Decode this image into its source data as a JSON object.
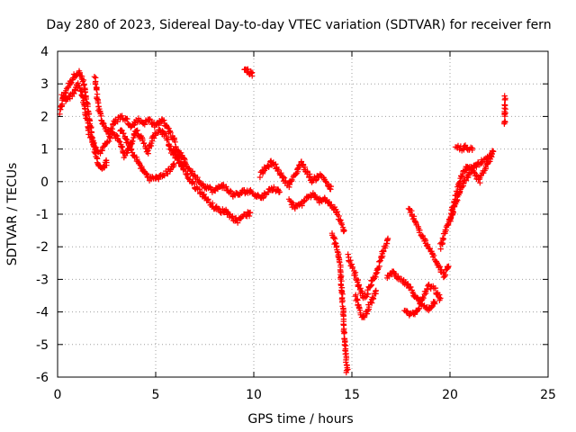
{
  "chart_data": {
    "type": "scatter",
    "title": "Day 280 of 2023, Sidereal Day-to-day VTEC variation (SDTVAR) for receiver fern",
    "xlabel": "GPS time / hours",
    "ylabel": "SDTVAR / TECUs",
    "xlim": [
      0,
      25
    ],
    "ylim": [
      -6,
      4
    ],
    "xticks": [
      0,
      5,
      10,
      15,
      20,
      25
    ],
    "yticks": [
      -6,
      -5,
      -4,
      -3,
      -2,
      -1,
      0,
      1,
      2,
      3,
      4
    ],
    "grid": true,
    "marker": "+",
    "color": "#ff0000",
    "series": [
      {
        "name": "SDTVAR",
        "note": "approximate trace estimates read from the plotted cloud; rendered as dense + markers",
        "traces": [
          [
            [
              0.1,
              2.1
            ],
            [
              0.3,
              2.6
            ],
            [
              0.5,
              2.9
            ],
            [
              0.7,
              3.1
            ],
            [
              0.9,
              3.3
            ],
            [
              1.1,
              3.35
            ],
            [
              1.3,
              3.1
            ],
            [
              1.5,
              2.4
            ],
            [
              1.7,
              1.6
            ],
            [
              1.9,
              0.9
            ],
            [
              2.1,
              0.5
            ],
            [
              2.3,
              0.4
            ],
            [
              2.5,
              0.6
            ]
          ],
          [
            [
              0.2,
              2.6
            ],
            [
              0.5,
              2.5
            ],
            [
              0.8,
              2.7
            ],
            [
              1.0,
              3.0
            ],
            [
              1.2,
              2.8
            ],
            [
              1.4,
              2.2
            ],
            [
              1.6,
              1.5
            ],
            [
              1.8,
              1.2
            ],
            [
              2.0,
              1.0
            ],
            [
              2.2,
              0.9
            ],
            [
              2.5,
              1.2
            ],
            [
              2.8,
              1.5
            ],
            [
              3.1,
              1.3
            ],
            [
              3.4,
              0.8
            ],
            [
              3.7,
              1.1
            ],
            [
              4.0,
              1.6
            ],
            [
              4.3,
              1.3
            ],
            [
              4.6,
              0.9
            ],
            [
              4.9,
              1.4
            ],
            [
              5.2,
              1.6
            ],
            [
              5.5,
              1.4
            ],
            [
              5.8,
              0.9
            ],
            [
              6.1,
              0.7
            ],
            [
              6.4,
              0.5
            ]
          ],
          [
            [
              1.9,
              3.2
            ],
            [
              2.0,
              2.7
            ],
            [
              2.1,
              2.2
            ],
            [
              2.3,
              1.8
            ],
            [
              2.6,
              1.5
            ],
            [
              2.9,
              1.8
            ],
            [
              3.2,
              2.0
            ],
            [
              3.5,
              1.9
            ],
            [
              3.8,
              1.7
            ],
            [
              4.1,
              1.9
            ],
            [
              4.4,
              1.8
            ],
            [
              4.7,
              1.9
            ],
            [
              5.0,
              1.7
            ],
            [
              5.3,
              1.9
            ],
            [
              5.6,
              1.7
            ],
            [
              5.9,
              1.3
            ],
            [
              6.2,
              0.8
            ]
          ],
          [
            [
              3.2,
              1.6
            ],
            [
              3.5,
              1.3
            ],
            [
              3.8,
              0.9
            ],
            [
              4.1,
              0.6
            ],
            [
              4.4,
              0.3
            ],
            [
              4.7,
              0.1
            ],
            [
              5.0,
              0.1
            ],
            [
              5.3,
              0.15
            ],
            [
              5.6,
              0.3
            ],
            [
              5.9,
              0.5
            ]
          ],
          [
            [
              5.9,
              1.0
            ],
            [
              6.2,
              0.6
            ],
            [
              6.5,
              0.3
            ],
            [
              6.8,
              0.0
            ],
            [
              7.1,
              -0.2
            ],
            [
              7.4,
              -0.4
            ],
            [
              7.7,
              -0.6
            ],
            [
              8.0,
              -0.8
            ],
            [
              8.3,
              -0.9
            ],
            [
              8.6,
              -0.9
            ],
            [
              8.9,
              -1.1
            ],
            [
              9.2,
              -1.2
            ],
            [
              9.5,
              -1.0
            ],
            [
              9.8,
              -1.0
            ]
          ],
          [
            [
              6.2,
              0.9
            ],
            [
              6.5,
              0.6
            ],
            [
              6.8,
              0.3
            ],
            [
              7.1,
              0.1
            ],
            [
              7.4,
              -0.1
            ],
            [
              7.7,
              -0.2
            ],
            [
              8.0,
              -0.3
            ],
            [
              8.3,
              -0.1
            ],
            [
              8.6,
              -0.2
            ],
            [
              8.9,
              -0.4
            ],
            [
              9.2,
              -0.4
            ],
            [
              9.5,
              -0.3
            ],
            [
              9.8,
              -0.3
            ],
            [
              10.1,
              -0.4
            ],
            [
              10.4,
              -0.5
            ],
            [
              10.7,
              -0.3
            ],
            [
              11.0,
              -0.2
            ],
            [
              11.3,
              -0.3
            ]
          ],
          [
            [
              9.5,
              3.5
            ],
            [
              9.7,
              3.4
            ],
            [
              9.9,
              3.3
            ]
          ],
          [
            [
              10.3,
              0.2
            ],
            [
              10.6,
              0.4
            ],
            [
              10.9,
              0.6
            ],
            [
              11.2,
              0.4
            ],
            [
              11.5,
              0.1
            ],
            [
              11.8,
              -0.1
            ],
            [
              12.1,
              0.2
            ],
            [
              12.4,
              0.6
            ],
            [
              12.7,
              0.3
            ],
            [
              13.0,
              0.0
            ],
            [
              13.3,
              0.2
            ],
            [
              13.6,
              0.1
            ],
            [
              13.9,
              -0.2
            ]
          ],
          [
            [
              11.8,
              -0.6
            ],
            [
              12.1,
              -0.8
            ],
            [
              12.4,
              -0.7
            ],
            [
              12.7,
              -0.5
            ],
            [
              13.0,
              -0.4
            ],
            [
              13.3,
              -0.6
            ],
            [
              13.6,
              -0.5
            ],
            [
              13.9,
              -0.7
            ],
            [
              14.2,
              -0.9
            ],
            [
              14.4,
              -1.2
            ],
            [
              14.6,
              -1.5
            ]
          ],
          [
            [
              14.0,
              -1.6
            ],
            [
              14.2,
              -2.0
            ],
            [
              14.4,
              -2.5
            ],
            [
              14.5,
              -3.5
            ],
            [
              14.6,
              -4.5
            ],
            [
              14.7,
              -5.4
            ],
            [
              14.75,
              -5.8
            ]
          ],
          [
            [
              14.8,
              -2.3
            ],
            [
              15.0,
              -2.6
            ],
            [
              15.2,
              -2.9
            ],
            [
              15.4,
              -3.3
            ],
            [
              15.6,
              -3.6
            ],
            [
              15.8,
              -3.4
            ],
            [
              16.0,
              -3.1
            ],
            [
              16.2,
              -2.9
            ],
            [
              16.4,
              -2.5
            ],
            [
              16.6,
              -2.1
            ],
            [
              16.8,
              -1.8
            ]
          ],
          [
            [
              15.2,
              -3.5
            ],
            [
              15.4,
              -4.0
            ],
            [
              15.6,
              -4.2
            ],
            [
              15.8,
              -3.9
            ],
            [
              16.0,
              -3.7
            ],
            [
              16.2,
              -3.4
            ]
          ],
          [
            [
              16.8,
              -2.9
            ],
            [
              17.1,
              -2.8
            ],
            [
              17.4,
              -3.0
            ],
            [
              17.7,
              -3.1
            ],
            [
              18.0,
              -3.3
            ],
            [
              18.3,
              -3.6
            ],
            [
              18.6,
              -3.8
            ],
            [
              18.9,
              -3.9
            ],
            [
              19.2,
              -3.7
            ]
          ],
          [
            [
              17.7,
              -3.9
            ],
            [
              18.0,
              -4.1
            ],
            [
              18.3,
              -4.0
            ],
            [
              18.6,
              -3.6
            ],
            [
              18.9,
              -3.2
            ],
            [
              19.2,
              -3.3
            ],
            [
              19.5,
              -3.6
            ]
          ],
          [
            [
              17.9,
              -0.8
            ],
            [
              18.2,
              -1.2
            ],
            [
              18.5,
              -1.6
            ],
            [
              18.8,
              -1.9
            ],
            [
              19.1,
              -2.2
            ],
            [
              19.4,
              -2.6
            ],
            [
              19.7,
              -2.9
            ],
            [
              19.9,
              -2.6
            ]
          ],
          [
            [
              19.5,
              -2.0
            ],
            [
              19.8,
              -1.5
            ],
            [
              20.1,
              -1.0
            ],
            [
              20.4,
              -0.5
            ],
            [
              20.7,
              0.0
            ],
            [
              21.0,
              0.3
            ],
            [
              21.3,
              0.5
            ],
            [
              21.6,
              0.6
            ],
            [
              21.9,
              0.7
            ],
            [
              22.1,
              0.8
            ],
            [
              22.2,
              0.9
            ]
          ],
          [
            [
              20.0,
              -1.2
            ],
            [
              20.2,
              -0.6
            ],
            [
              20.4,
              -0.2
            ],
            [
              20.6,
              0.2
            ],
            [
              20.9,
              0.5
            ],
            [
              21.2,
              0.3
            ],
            [
              21.5,
              0.0
            ],
            [
              21.8,
              0.4
            ],
            [
              22.1,
              0.8
            ]
          ],
          [
            [
              20.3,
              1.1
            ],
            [
              20.6,
              1.0
            ],
            [
              20.8,
              1.05
            ],
            [
              21.1,
              1.0
            ]
          ],
          [
            [
              22.8,
              2.6
            ],
            [
              22.8,
              2.2
            ],
            [
              22.8,
              1.8
            ]
          ]
        ]
      }
    ]
  }
}
